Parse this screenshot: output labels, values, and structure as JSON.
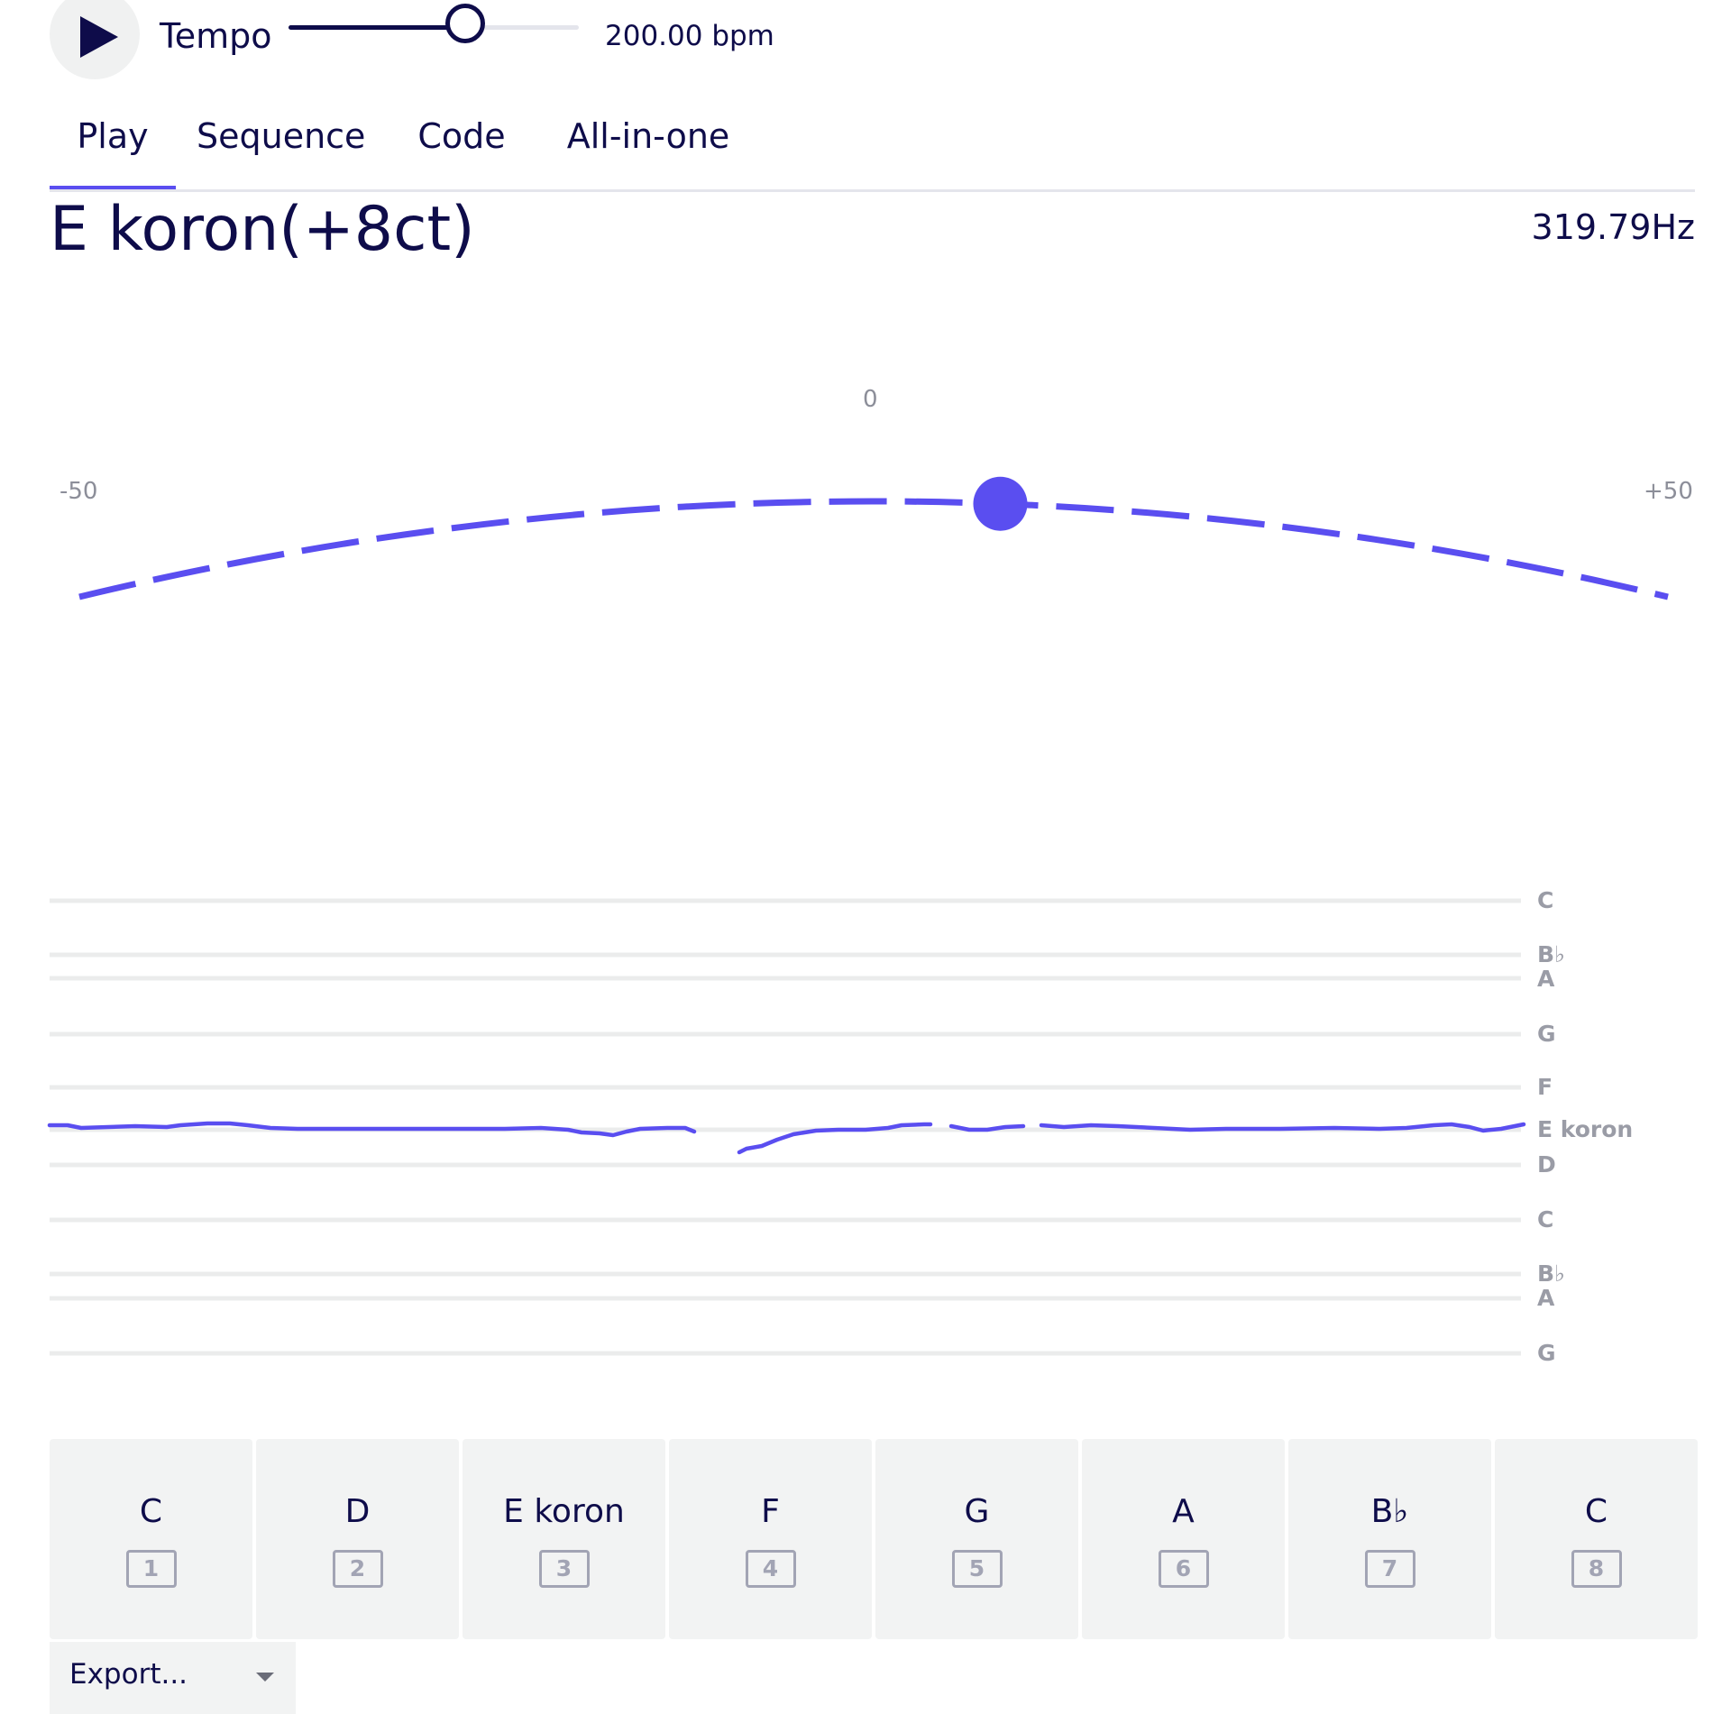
{
  "toolbar": {
    "play_icon": "play-icon",
    "tempo_label": "Tempo",
    "tempo_value": "200.00 bpm",
    "tempo_slider_level": 0.61
  },
  "tabs": [
    {
      "label": "Play",
      "active": true
    },
    {
      "label": "Sequence",
      "active": false
    },
    {
      "label": "Code",
      "active": false
    },
    {
      "label": "All-in-one",
      "active": false
    }
  ],
  "note": {
    "name": "E koron(+8ct)",
    "frequency": "319.79Hz"
  },
  "tuner": {
    "min_label": "-50",
    "center_label": "0",
    "max_label": "+50",
    "cents_offset": 8
  },
  "pitch_graph": {
    "staff_labels": [
      "C",
      "B♭",
      "A",
      "G",
      "F",
      "E koron",
      "D",
      "C",
      "B♭",
      "A",
      "G"
    ]
  },
  "keys": [
    {
      "label": "C",
      "shortcut": "1"
    },
    {
      "label": "D",
      "shortcut": "2"
    },
    {
      "label": "E koron",
      "shortcut": "3"
    },
    {
      "label": "F",
      "shortcut": "4"
    },
    {
      "label": "G",
      "shortcut": "5"
    },
    {
      "label": "A",
      "shortcut": "6"
    },
    {
      "label": "B♭",
      "shortcut": "7"
    },
    {
      "label": "C",
      "shortcut": "8"
    }
  ],
  "export": {
    "label": "Export..."
  },
  "colors": {
    "accent": "#5a4ef0",
    "text": "#0e0c4a",
    "muted": "#9a9ca6",
    "key_bg": "#f2f3f3"
  }
}
